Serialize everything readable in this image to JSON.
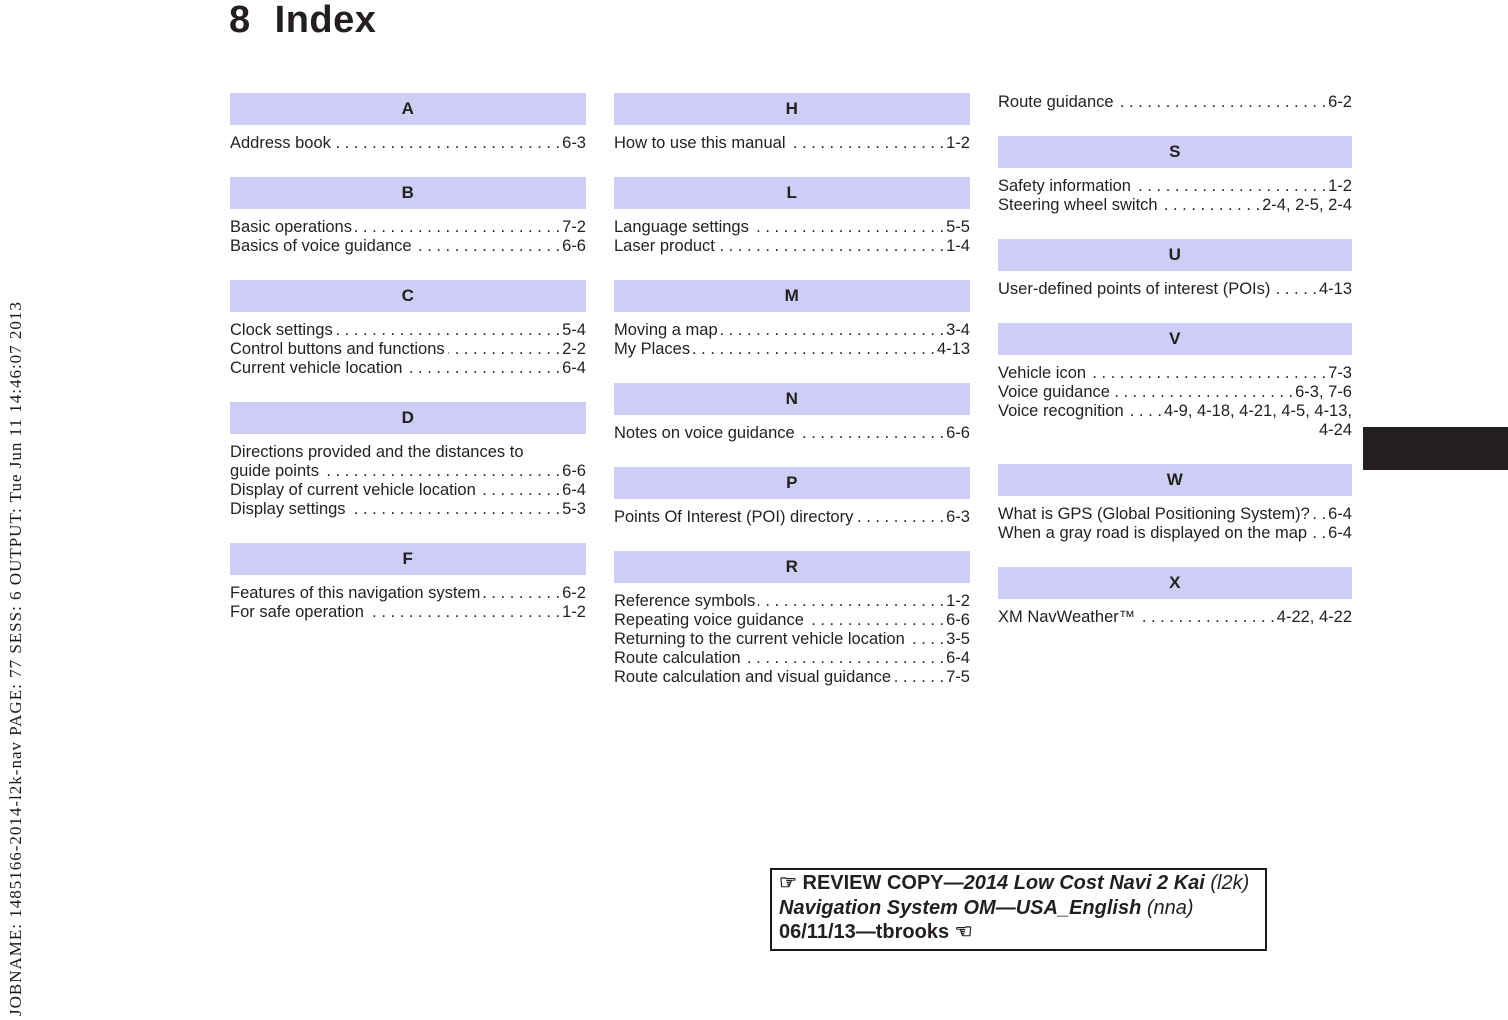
{
  "page_title": {
    "number": "8",
    "name": "Index"
  },
  "sidebar_text": "JOBNAME: 1485166-2014-l2k-nav PAGE: 77 SESS: 6 OUTPUT: Tue Jun 11 14:46:07 2013",
  "colors": {
    "section_header_bg": "#cdcdf5",
    "chapter_tab": "#231f20",
    "text": "#231f20"
  },
  "columns": [
    {
      "sections": [
        {
          "letter": "A",
          "entries": [
            [
              {
                "t": "Address book",
                "p": "6-3"
              }
            ]
          ]
        },
        {
          "letter": "B",
          "entries": [
            [
              {
                "t": "Basic operations",
                "p": "7-2"
              }
            ],
            [
              {
                "t": "Basics of voice guidance",
                "p": "6-6"
              }
            ]
          ]
        },
        {
          "letter": "C",
          "entries": [
            [
              {
                "t": "Clock settings",
                "p": "5-4"
              }
            ],
            [
              {
                "t": "Control buttons and functions",
                "p": "2-2"
              }
            ],
            [
              {
                "t": "Current vehicle location",
                "p": "6-4"
              }
            ]
          ]
        },
        {
          "letter": "D",
          "entries": [
            [
              {
                "t": "Directions provided and the distances to"
              },
              {
                "t": "guide points",
                "p": "6-6"
              }
            ],
            [
              {
                "t": "Display of current vehicle location",
                "p": "6-4"
              }
            ],
            [
              {
                "t": "Display settings",
                "p": "5-3"
              }
            ]
          ]
        },
        {
          "letter": "F",
          "entries": [
            [
              {
                "t": "Features of this navigation system",
                "p": "6-2"
              }
            ],
            [
              {
                "t": "For safe operation",
                "p": "1-2"
              }
            ]
          ]
        }
      ]
    },
    {
      "sections": [
        {
          "letter": "H",
          "entries": [
            [
              {
                "t": "How to use this manual",
                "p": "1-2"
              }
            ]
          ]
        },
        {
          "letter": "L",
          "entries": [
            [
              {
                "t": "Language settings",
                "p": "5-5"
              }
            ],
            [
              {
                "t": "Laser product",
                "p": "1-4"
              }
            ]
          ]
        },
        {
          "letter": "M",
          "entries": [
            [
              {
                "t": "Moving a map",
                "p": "3-4"
              }
            ],
            [
              {
                "t": "My Places",
                "p": "4-13"
              }
            ]
          ]
        },
        {
          "letter": "N",
          "entries": [
            [
              {
                "t": "Notes on voice guidance",
                "p": "6-6"
              }
            ]
          ]
        },
        {
          "letter": "P",
          "entries": [
            [
              {
                "t": "Points Of Interest (POI) directory",
                "p": "6-3"
              }
            ]
          ]
        },
        {
          "letter": "R",
          "entries": [
            [
              {
                "t": "Reference symbols",
                "p": "1-2"
              }
            ],
            [
              {
                "t": "Repeating voice guidance",
                "p": "6-6"
              }
            ],
            [
              {
                "t": "Returning to the current vehicle location",
                "p": "3-5"
              }
            ],
            [
              {
                "t": "Route calculation",
                "p": "6-4"
              }
            ],
            [
              {
                "t": "Route calculation and visual guidance",
                "p": "7-5"
              }
            ]
          ]
        }
      ]
    },
    {
      "sections": [
        {
          "letter": null,
          "entries": [
            [
              {
                "t": "Route guidance",
                "p": "6-2"
              }
            ]
          ]
        },
        {
          "letter": "S",
          "entries": [
            [
              {
                "t": "Safety information",
                "p": "1-2"
              }
            ],
            [
              {
                "t": "Steering wheel switch",
                "p": "2-4, 2-5, 2-4"
              }
            ]
          ]
        },
        {
          "letter": "U",
          "entries": [
            [
              {
                "t": "User-defined points of interest (POIs)",
                "p": "4-13"
              }
            ]
          ]
        },
        {
          "letter": "V",
          "entries": [
            [
              {
                "t": "Vehicle icon",
                "p": "7-3"
              }
            ],
            [
              {
                "t": "Voice guidance",
                "p": "6-3, 7-6"
              }
            ],
            [
              {
                "t": "Voice recognition",
                "p": "4-9, 4-18, 4-21, 4-5, 4-13,"
              },
              {
                "p": "4-24"
              }
            ]
          ]
        },
        {
          "letter": "W",
          "entries": [
            [
              {
                "t": "What is GPS (Global Positioning System)?",
                "p": "6-4"
              }
            ],
            [
              {
                "t": "When a gray road is displayed on the map",
                "p": "6-4"
              }
            ]
          ]
        },
        {
          "letter": "X",
          "entries": [
            [
              {
                "t": "XM NavWeather™",
                "p": "4-22, 4-22"
              }
            ]
          ]
        }
      ]
    }
  ],
  "review_box": {
    "lines": [
      [
        {
          "t": "☞ ",
          "s": "b",
          "icon": "pointing-hand-right-icon"
        },
        {
          "t": "REVIEW COPY—",
          "s": "b"
        },
        {
          "t": "2014 Low Cost Navi 2 Kai",
          "s": "bi"
        },
        {
          "t": " (l2k)",
          "s": "i"
        }
      ],
      [
        {
          "t": "Navigation System OM—USA_English",
          "s": "bi"
        },
        {
          "t": " (nna)",
          "s": "i"
        }
      ],
      [
        {
          "t": "06/11/13—tbrooks ",
          "s": "b"
        },
        {
          "t": "☜",
          "s": "b",
          "icon": "pointing-hand-left-icon"
        }
      ]
    ]
  }
}
